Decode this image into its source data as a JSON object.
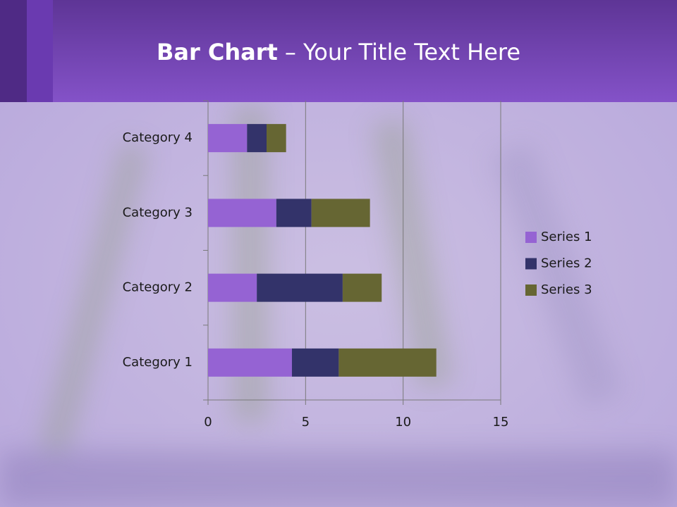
{
  "chart_data": {
    "type": "stacked_bar_horizontal",
    "title": {
      "bold": "Bar Chart",
      "rest": "– Your Title Text Here"
    },
    "categories": [
      "Category 1",
      "Category 2",
      "Category 3",
      "Category 4"
    ],
    "series": [
      {
        "name": "Series 1",
        "color": "#9563d3",
        "values": [
          4.3,
          2.5,
          3.5,
          2
        ]
      },
      {
        "name": "Series 2",
        "color": "#33336a",
        "values": [
          2.4,
          4.4,
          1.8,
          1
        ]
      },
      {
        "name": "Series 3",
        "color": "#666633",
        "values": [
          5,
          2,
          3,
          1
        ]
      }
    ],
    "xlim": [
      0,
      15
    ],
    "xticks": [
      0,
      5,
      10,
      15
    ],
    "grid": true,
    "legend": "right"
  }
}
